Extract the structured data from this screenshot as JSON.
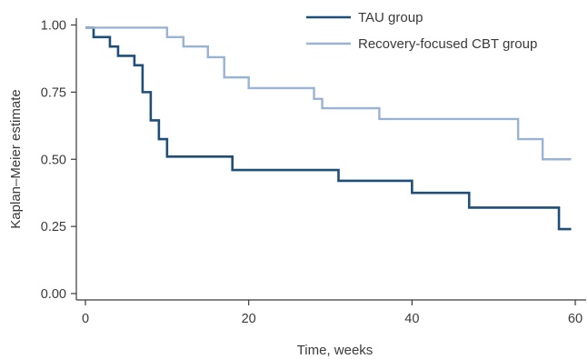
{
  "chart_data": {
    "type": "line",
    "step": true,
    "xlabel": "Time, weeks",
    "ylabel": "Kaplan–Meier estimate",
    "xlim": [
      -1,
      61
    ],
    "ylim": [
      -0.02,
      1.03
    ],
    "xticks": [
      0,
      20,
      40,
      60
    ],
    "xtick_labels": [
      "0",
      "20",
      "40",
      "60"
    ],
    "yticks": [
      0.0,
      0.25,
      0.5,
      0.75,
      1.0
    ],
    "ytick_labels": [
      "0.00",
      "0.25",
      "0.50",
      "0.75",
      "1.00"
    ],
    "grid": false,
    "legend_position": "top-right",
    "series": [
      {
        "name": "TAU group",
        "color": "#1f4e79",
        "x": [
          0,
          1,
          3,
          4,
          6,
          7,
          8,
          9,
          10,
          18,
          31,
          40,
          47,
          58,
          59.5
        ],
        "y": [
          0.99,
          0.955,
          0.92,
          0.885,
          0.85,
          0.75,
          0.645,
          0.575,
          0.51,
          0.46,
          0.42,
          0.375,
          0.32,
          0.24,
          0.24
        ]
      },
      {
        "name": "Recovery-focused CBT group",
        "color": "#9ab3d5",
        "x": [
          0,
          10,
          12,
          15,
          17,
          20,
          28,
          29,
          36,
          53,
          56,
          59.5
        ],
        "y": [
          0.99,
          0.955,
          0.92,
          0.88,
          0.805,
          0.765,
          0.725,
          0.69,
          0.65,
          0.575,
          0.5,
          0.5
        ]
      }
    ]
  }
}
